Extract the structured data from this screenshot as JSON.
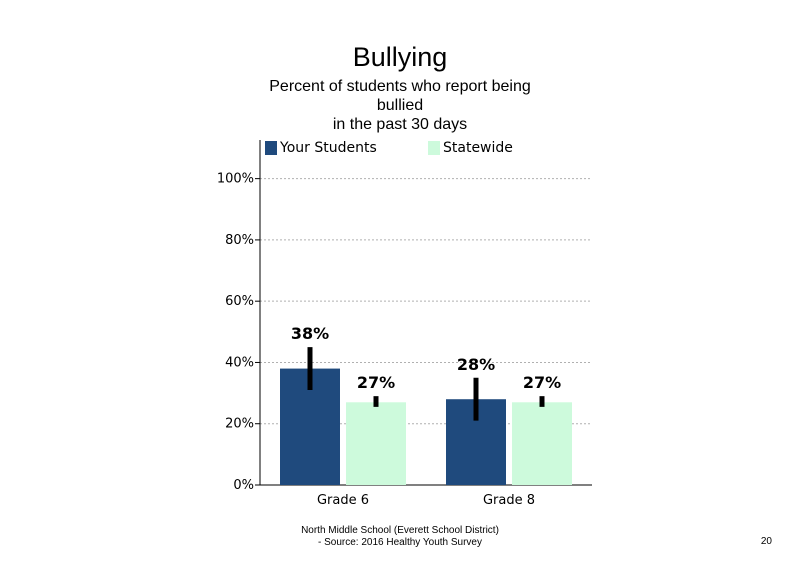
{
  "title": "Bullying",
  "subtitle_lines": [
    "Percent of students  who report being",
    "bullied",
    "in the past 30 days"
  ],
  "footer_lines": [
    "North  Middle  School  (Everett  School District)",
    "- Source:  2016 Healthy  Youth Survey"
  ],
  "page_number": "20",
  "colors": {
    "your_students": "#1f4a7d",
    "statewide": "#cdfadc",
    "error_bar": "#000000",
    "gridline": "#b0b0b0"
  },
  "chart_data": {
    "type": "bar",
    "categories": [
      "Grade 6",
      "Grade 8"
    ],
    "series": [
      {
        "name": "Your Students",
        "values": [
          38,
          28
        ],
        "labels": [
          "38%",
          "28%"
        ],
        "error_low": [
          31,
          21
        ],
        "error_high": [
          45,
          35
        ]
      },
      {
        "name": "Statewide",
        "values": [
          27,
          27
        ],
        "labels": [
          "27%",
          "27%"
        ],
        "error_low": [
          25.5,
          25.5
        ],
        "error_high": [
          29,
          29
        ]
      }
    ],
    "ylim": [
      0,
      110
    ],
    "yticks": [
      0,
      20,
      40,
      60,
      80,
      100
    ],
    "ytick_labels": [
      "0%",
      "20%",
      "40%",
      "60%",
      "80%",
      "100%"
    ],
    "grid": true,
    "legend_position": "top"
  }
}
